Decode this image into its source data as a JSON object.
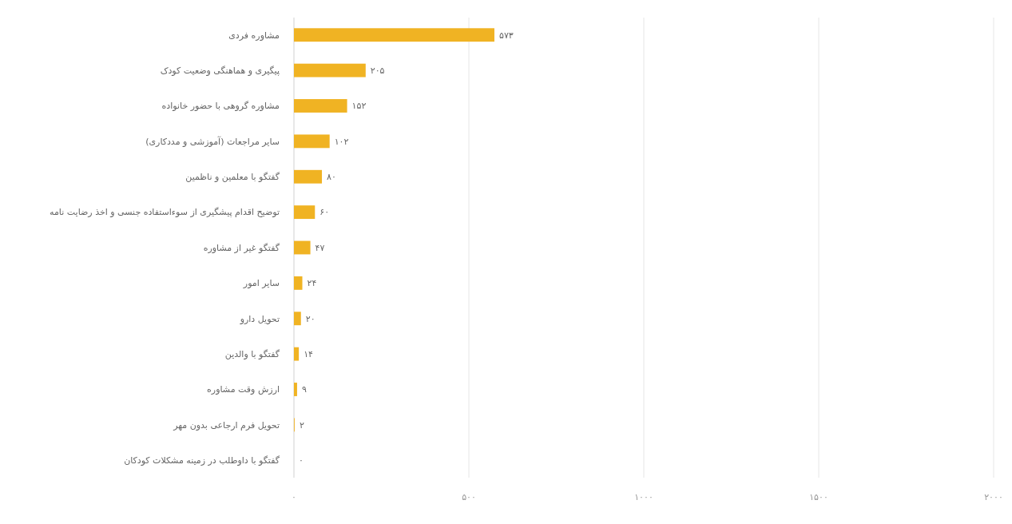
{
  "chart_data": {
    "type": "bar",
    "orientation": "horizontal",
    "categories": [
      "مشاوره فردی",
      "پیگیری و هماهنگی وضعیت کودک",
      "مشاوره گروهی با حضور خانواده",
      "سایر مراجعات (آموزشی و مددکاری)",
      "گفتگو با معلمین و ناظمین",
      "توضیح اقدام پیشگیری از سوءاستفاده جنسی و اخذ رضایت نامه",
      "گفتگو غیر از مشاوره",
      "سایر امور",
      "تحویل دارو",
      "گفتگو با والدین",
      "ارزش وقت مشاوره",
      "تحویل فرم ارجاعی بدون مهر",
      "گفتگو با داوطلب در زمینه مشکلات کودکان"
    ],
    "values": [
      573,
      205,
      152,
      102,
      80,
      60,
      47,
      24,
      20,
      14,
      9,
      2,
      0
    ],
    "value_labels": [
      "۵۷۳",
      "۲۰۵",
      "۱۵۲",
      "۱۰۲",
      "۸۰",
      "۶۰",
      "۴۷",
      "۲۴",
      "۲۰",
      "۱۴",
      "۹",
      "۲",
      "۰"
    ],
    "color": "#f0b323",
    "xlim": [
      0,
      2000
    ],
    "xticks": [
      {
        "value": 0,
        "label": "۰"
      },
      {
        "value": 500,
        "label": "۵۰۰"
      },
      {
        "value": 1000,
        "label": "۱۰۰۰"
      },
      {
        "value": 1500,
        "label": "۱۵۰۰"
      },
      {
        "value": 2000,
        "label": "۲۰۰۰"
      }
    ],
    "grid": "x"
  }
}
